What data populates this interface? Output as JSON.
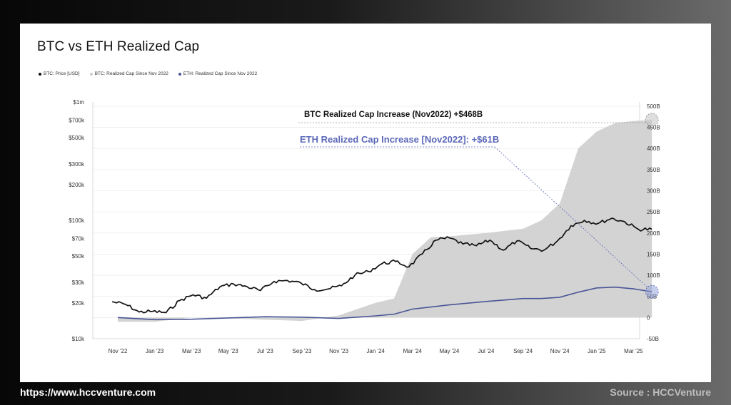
{
  "footer": {
    "url": "https://www.hccventure.com",
    "source": "Source : HCCVenture"
  },
  "colors": {
    "btc_price": "#111111",
    "btc_realized": "#d3d3d3",
    "eth_realized": "#4a5596",
    "annotation_eth": "#5b68b8"
  },
  "chart_data": {
    "type": "line",
    "title": "BTC vs ETH Realized Cap",
    "legend": [
      {
        "name": "BTC: Price [USD]",
        "color": "#111111"
      },
      {
        "name": "BTC: Realized Cap Since Nov 2022",
        "color": "#cccccc"
      },
      {
        "name": "ETH: Realized Cap Since Nov 2022",
        "color": "#4a5596"
      }
    ],
    "legend_position": "top-left",
    "grid": true,
    "x_ticks": [
      "Nov '22",
      "Jan '23",
      "Mar '23",
      "May '23",
      "Jul '23",
      "Sep '23",
      "Nov '23",
      "Jan '24",
      "Mar '24",
      "May '24",
      "Jul '24",
      "Sep '24",
      "Nov '24",
      "Jan '25",
      "Mar '25"
    ],
    "y_left": {
      "scale": "log",
      "ticks": [
        {
          "label": "$1m",
          "value": 1000000
        },
        {
          "label": "$700k",
          "value": 700000
        },
        {
          "label": "$500k",
          "value": 500000
        },
        {
          "label": "$300k",
          "value": 300000
        },
        {
          "label": "$200k",
          "value": 200000
        },
        {
          "label": "$100k",
          "value": 100000
        },
        {
          "label": "$70k",
          "value": 70000
        },
        {
          "label": "$50k",
          "value": 50000
        },
        {
          "label": "$30k",
          "value": 30000
        },
        {
          "label": "$20k",
          "value": 20000
        },
        {
          "label": "$10k",
          "value": 10000
        }
      ],
      "range": [
        10000,
        1000000
      ]
    },
    "y_right": {
      "scale": "linear",
      "ticks": [
        {
          "label": "500B",
          "value": 500
        },
        {
          "label": "450B",
          "value": 450
        },
        {
          "label": "400B",
          "value": 400
        },
        {
          "label": "350B",
          "value": 350
        },
        {
          "label": "300B",
          "value": 300
        },
        {
          "label": "250B",
          "value": 250
        },
        {
          "label": "200B",
          "value": 200
        },
        {
          "label": "150B",
          "value": 150
        },
        {
          "label": "100B",
          "value": 100
        },
        {
          "label": "50B",
          "value": 50
        },
        {
          "label": "0",
          "value": 0
        },
        {
          "label": "-50B",
          "value": -50
        }
      ],
      "range": [
        -50,
        510
      ]
    },
    "series": [
      {
        "name": "BTC: Price [USD]",
        "axis": "left",
        "points": [
          [
            "Nov '22",
            20500
          ],
          [
            "Nov '22",
            19500
          ],
          [
            "Nov '22",
            16800
          ],
          [
            "Dec '22",
            17000
          ],
          [
            "Jan '23",
            16600
          ],
          [
            "Jan '23",
            21000
          ],
          [
            "Feb '23",
            23500
          ],
          [
            "Mar '23",
            22000
          ],
          [
            "Mar '23",
            27500
          ],
          [
            "Apr '23",
            29000
          ],
          [
            "May '23",
            27500
          ],
          [
            "Jun '23",
            25500
          ],
          [
            "Jun '23",
            30500
          ],
          [
            "Jul '23",
            31000
          ],
          [
            "Jul '23",
            29500
          ],
          [
            "Aug '23",
            26000
          ],
          [
            "Sep '23",
            26300
          ],
          [
            "Oct '23",
            28000
          ],
          [
            "Oct '23",
            34500
          ],
          [
            "Nov '23",
            37000
          ],
          [
            "Dec '23",
            43000
          ],
          [
            "Jan '24",
            45000
          ],
          [
            "Jan '24",
            40500
          ],
          [
            "Feb '24",
            52000
          ],
          [
            "Mar '24",
            68000
          ],
          [
            "Mar '24",
            71000
          ],
          [
            "Apr '24",
            63000
          ],
          [
            "May '24",
            61000
          ],
          [
            "Jun '24",
            68000
          ],
          [
            "Jul '24",
            56000
          ],
          [
            "Jul '24",
            67000
          ],
          [
            "Aug '24",
            58000
          ],
          [
            "Sep '24",
            56000
          ],
          [
            "Oct '24",
            67000
          ],
          [
            "Nov '24",
            90000
          ],
          [
            "Dec '24",
            100000
          ],
          [
            "Jan '25",
            94000
          ],
          [
            "Jan '25",
            104000
          ],
          [
            "Feb '25",
            97000
          ],
          [
            "Mar '25",
            84000
          ],
          [
            "Apr '25",
            84000
          ]
        ]
      },
      {
        "name": "BTC: Realized Cap Since Nov 2022",
        "axis": "right",
        "points": [
          [
            "Nov '22",
            -10
          ],
          [
            "Jan '23",
            -10
          ],
          [
            "Mar '23",
            0
          ],
          [
            "May '23",
            -2
          ],
          [
            "Jul '23",
            -5
          ],
          [
            "Sep '23",
            -8
          ],
          [
            "Nov '23",
            5
          ],
          [
            "Jan '24",
            35
          ],
          [
            "Feb '24",
            45
          ],
          [
            "Mar '24",
            150
          ],
          [
            "Apr '24",
            190
          ],
          [
            "May '24",
            192
          ],
          [
            "Jul '24",
            200
          ],
          [
            "Sep '24",
            210
          ],
          [
            "Oct '24",
            230
          ],
          [
            "Nov '24",
            270
          ],
          [
            "Dec '24",
            400
          ],
          [
            "Jan '25",
            440
          ],
          [
            "Feb '25",
            460
          ],
          [
            "Mar '25",
            465
          ],
          [
            "Apr '25",
            468
          ]
        ]
      },
      {
        "name": "ETH: Realized Cap Since Nov 2022",
        "axis": "right",
        "points": [
          [
            "Nov '22",
            0
          ],
          [
            "Jan '23",
            -5
          ],
          [
            "Mar '23",
            -4
          ],
          [
            "May '23",
            -1
          ],
          [
            "Jul '23",
            2
          ],
          [
            "Sep '23",
            1
          ],
          [
            "Nov '23",
            -2
          ],
          [
            "Jan '24",
            4
          ],
          [
            "Feb '24",
            8
          ],
          [
            "Mar '24",
            20
          ],
          [
            "Apr '24",
            25
          ],
          [
            "May '24",
            30
          ],
          [
            "Jul '24",
            38
          ],
          [
            "Sep '24",
            45
          ],
          [
            "Oct '24",
            45
          ],
          [
            "Nov '24",
            48
          ],
          [
            "Dec '24",
            60
          ],
          [
            "Jan '25",
            70
          ],
          [
            "Feb '25",
            72
          ],
          [
            "Mar '25",
            68
          ],
          [
            "Apr '25",
            61
          ]
        ]
      }
    ],
    "annotations": [
      {
        "text": "BTC Realized Cap Increase (Nov2022) +$468B",
        "color": "#111111"
      },
      {
        "text": "ETH Realized Cap Increase [Nov2022]: +$61B",
        "color": "#5b68b8"
      }
    ]
  }
}
